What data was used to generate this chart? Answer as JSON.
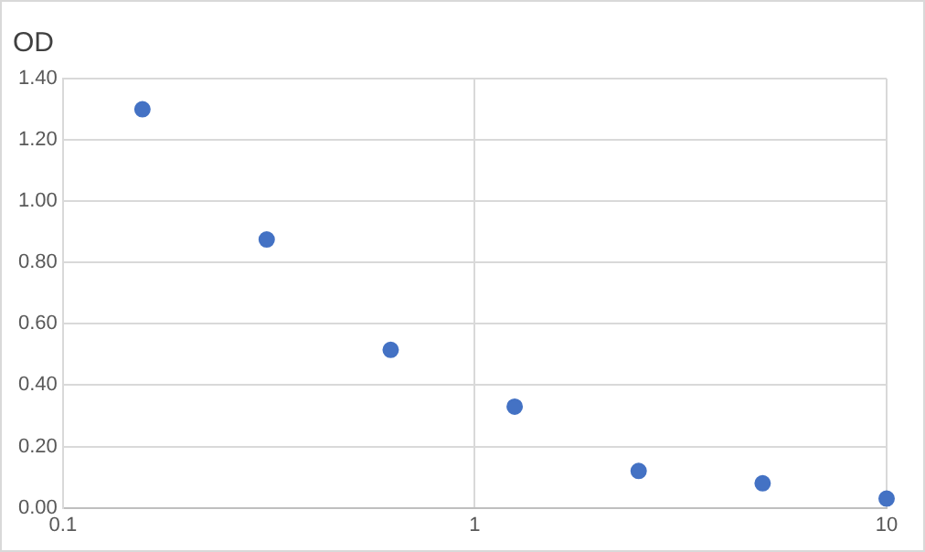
{
  "chart_data": {
    "type": "scatter",
    "title": "OD",
    "x": [
      0.156,
      0.3125,
      0.625,
      1.25,
      2.5,
      5,
      10
    ],
    "series": [
      {
        "color": "#4472c4",
        "values": [
          1.3,
          0.875,
          0.515,
          0.33,
          0.12,
          0.08,
          0.03
        ]
      }
    ],
    "log": "x",
    "xlim": [
      0.1,
      10
    ],
    "xticks": [
      0.1,
      1,
      10
    ],
    "ylim": [
      0,
      1.4
    ],
    "yticks": [
      {
        "value": 0,
        "label": "0.00"
      },
      {
        "value": 0.2,
        "label": "0.20"
      },
      {
        "value": 0.4,
        "label": "0.40"
      },
      {
        "value": 0.6,
        "label": "0.60"
      },
      {
        "value": 0.8,
        "label": "0.80"
      },
      {
        "value": 1.0,
        "label": "1.00"
      },
      {
        "value": 1.2,
        "label": "1.20"
      },
      {
        "value": 1.4,
        "label": "1.40"
      }
    ],
    "grid": true,
    "marker": "circle",
    "legend": false
  }
}
